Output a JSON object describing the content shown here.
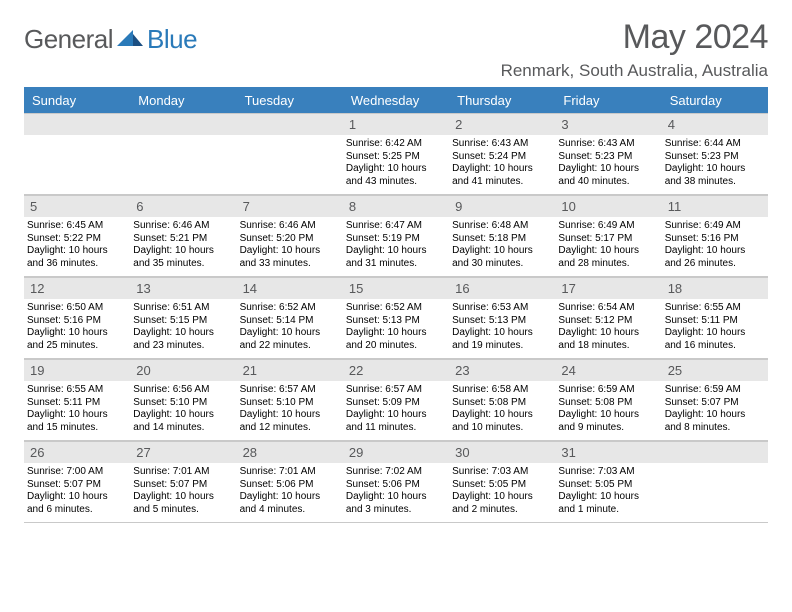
{
  "colors": {
    "header_bg": "#3980bd",
    "header_text": "#ffffff",
    "strip_bg": "#e7e7e7",
    "strip_text": "#58595b",
    "body_text": "#000000",
    "logo_gray": "#58595b",
    "logo_blue": "#2a7ab9",
    "rule": "#3980bd",
    "background": "#ffffff",
    "cell_border": "#c9c9c9"
  },
  "typography": {
    "month_title_fontsize": 34,
    "location_fontsize": 17,
    "dow_fontsize": 13,
    "daynum_fontsize": 13,
    "body_fontsize": 10
  },
  "logo": {
    "part1": "General",
    "part2": "Blue"
  },
  "title": "May 2024",
  "location": "Renmark, South Australia, Australia",
  "days_of_week": [
    "Sunday",
    "Monday",
    "Tuesday",
    "Wednesday",
    "Thursday",
    "Friday",
    "Saturday"
  ],
  "weeks": [
    [
      {
        "n": "",
        "l1": "",
        "l2": "",
        "l3": "",
        "l4": ""
      },
      {
        "n": "",
        "l1": "",
        "l2": "",
        "l3": "",
        "l4": ""
      },
      {
        "n": "",
        "l1": "",
        "l2": "",
        "l3": "",
        "l4": ""
      },
      {
        "n": "1",
        "l1": "Sunrise: 6:42 AM",
        "l2": "Sunset: 5:25 PM",
        "l3": "Daylight: 10 hours",
        "l4": "and 43 minutes."
      },
      {
        "n": "2",
        "l1": "Sunrise: 6:43 AM",
        "l2": "Sunset: 5:24 PM",
        "l3": "Daylight: 10 hours",
        "l4": "and 41 minutes."
      },
      {
        "n": "3",
        "l1": "Sunrise: 6:43 AM",
        "l2": "Sunset: 5:23 PM",
        "l3": "Daylight: 10 hours",
        "l4": "and 40 minutes."
      },
      {
        "n": "4",
        "l1": "Sunrise: 6:44 AM",
        "l2": "Sunset: 5:23 PM",
        "l3": "Daylight: 10 hours",
        "l4": "and 38 minutes."
      }
    ],
    [
      {
        "n": "5",
        "l1": "Sunrise: 6:45 AM",
        "l2": "Sunset: 5:22 PM",
        "l3": "Daylight: 10 hours",
        "l4": "and 36 minutes."
      },
      {
        "n": "6",
        "l1": "Sunrise: 6:46 AM",
        "l2": "Sunset: 5:21 PM",
        "l3": "Daylight: 10 hours",
        "l4": "and 35 minutes."
      },
      {
        "n": "7",
        "l1": "Sunrise: 6:46 AM",
        "l2": "Sunset: 5:20 PM",
        "l3": "Daylight: 10 hours",
        "l4": "and 33 minutes."
      },
      {
        "n": "8",
        "l1": "Sunrise: 6:47 AM",
        "l2": "Sunset: 5:19 PM",
        "l3": "Daylight: 10 hours",
        "l4": "and 31 minutes."
      },
      {
        "n": "9",
        "l1": "Sunrise: 6:48 AM",
        "l2": "Sunset: 5:18 PM",
        "l3": "Daylight: 10 hours",
        "l4": "and 30 minutes."
      },
      {
        "n": "10",
        "l1": "Sunrise: 6:49 AM",
        "l2": "Sunset: 5:17 PM",
        "l3": "Daylight: 10 hours",
        "l4": "and 28 minutes."
      },
      {
        "n": "11",
        "l1": "Sunrise: 6:49 AM",
        "l2": "Sunset: 5:16 PM",
        "l3": "Daylight: 10 hours",
        "l4": "and 26 minutes."
      }
    ],
    [
      {
        "n": "12",
        "l1": "Sunrise: 6:50 AM",
        "l2": "Sunset: 5:16 PM",
        "l3": "Daylight: 10 hours",
        "l4": "and 25 minutes."
      },
      {
        "n": "13",
        "l1": "Sunrise: 6:51 AM",
        "l2": "Sunset: 5:15 PM",
        "l3": "Daylight: 10 hours",
        "l4": "and 23 minutes."
      },
      {
        "n": "14",
        "l1": "Sunrise: 6:52 AM",
        "l2": "Sunset: 5:14 PM",
        "l3": "Daylight: 10 hours",
        "l4": "and 22 minutes."
      },
      {
        "n": "15",
        "l1": "Sunrise: 6:52 AM",
        "l2": "Sunset: 5:13 PM",
        "l3": "Daylight: 10 hours",
        "l4": "and 20 minutes."
      },
      {
        "n": "16",
        "l1": "Sunrise: 6:53 AM",
        "l2": "Sunset: 5:13 PM",
        "l3": "Daylight: 10 hours",
        "l4": "and 19 minutes."
      },
      {
        "n": "17",
        "l1": "Sunrise: 6:54 AM",
        "l2": "Sunset: 5:12 PM",
        "l3": "Daylight: 10 hours",
        "l4": "and 18 minutes."
      },
      {
        "n": "18",
        "l1": "Sunrise: 6:55 AM",
        "l2": "Sunset: 5:11 PM",
        "l3": "Daylight: 10 hours",
        "l4": "and 16 minutes."
      }
    ],
    [
      {
        "n": "19",
        "l1": "Sunrise: 6:55 AM",
        "l2": "Sunset: 5:11 PM",
        "l3": "Daylight: 10 hours",
        "l4": "and 15 minutes."
      },
      {
        "n": "20",
        "l1": "Sunrise: 6:56 AM",
        "l2": "Sunset: 5:10 PM",
        "l3": "Daylight: 10 hours",
        "l4": "and 14 minutes."
      },
      {
        "n": "21",
        "l1": "Sunrise: 6:57 AM",
        "l2": "Sunset: 5:10 PM",
        "l3": "Daylight: 10 hours",
        "l4": "and 12 minutes."
      },
      {
        "n": "22",
        "l1": "Sunrise: 6:57 AM",
        "l2": "Sunset: 5:09 PM",
        "l3": "Daylight: 10 hours",
        "l4": "and 11 minutes."
      },
      {
        "n": "23",
        "l1": "Sunrise: 6:58 AM",
        "l2": "Sunset: 5:08 PM",
        "l3": "Daylight: 10 hours",
        "l4": "and 10 minutes."
      },
      {
        "n": "24",
        "l1": "Sunrise: 6:59 AM",
        "l2": "Sunset: 5:08 PM",
        "l3": "Daylight: 10 hours",
        "l4": "and 9 minutes."
      },
      {
        "n": "25",
        "l1": "Sunrise: 6:59 AM",
        "l2": "Sunset: 5:07 PM",
        "l3": "Daylight: 10 hours",
        "l4": "and 8 minutes."
      }
    ],
    [
      {
        "n": "26",
        "l1": "Sunrise: 7:00 AM",
        "l2": "Sunset: 5:07 PM",
        "l3": "Daylight: 10 hours",
        "l4": "and 6 minutes."
      },
      {
        "n": "27",
        "l1": "Sunrise: 7:01 AM",
        "l2": "Sunset: 5:07 PM",
        "l3": "Daylight: 10 hours",
        "l4": "and 5 minutes."
      },
      {
        "n": "28",
        "l1": "Sunrise: 7:01 AM",
        "l2": "Sunset: 5:06 PM",
        "l3": "Daylight: 10 hours",
        "l4": "and 4 minutes."
      },
      {
        "n": "29",
        "l1": "Sunrise: 7:02 AM",
        "l2": "Sunset: 5:06 PM",
        "l3": "Daylight: 10 hours",
        "l4": "and 3 minutes."
      },
      {
        "n": "30",
        "l1": "Sunrise: 7:03 AM",
        "l2": "Sunset: 5:05 PM",
        "l3": "Daylight: 10 hours",
        "l4": "and 2 minutes."
      },
      {
        "n": "31",
        "l1": "Sunrise: 7:03 AM",
        "l2": "Sunset: 5:05 PM",
        "l3": "Daylight: 10 hours",
        "l4": "and 1 minute."
      },
      {
        "n": "",
        "l1": "",
        "l2": "",
        "l3": "",
        "l4": ""
      }
    ]
  ]
}
